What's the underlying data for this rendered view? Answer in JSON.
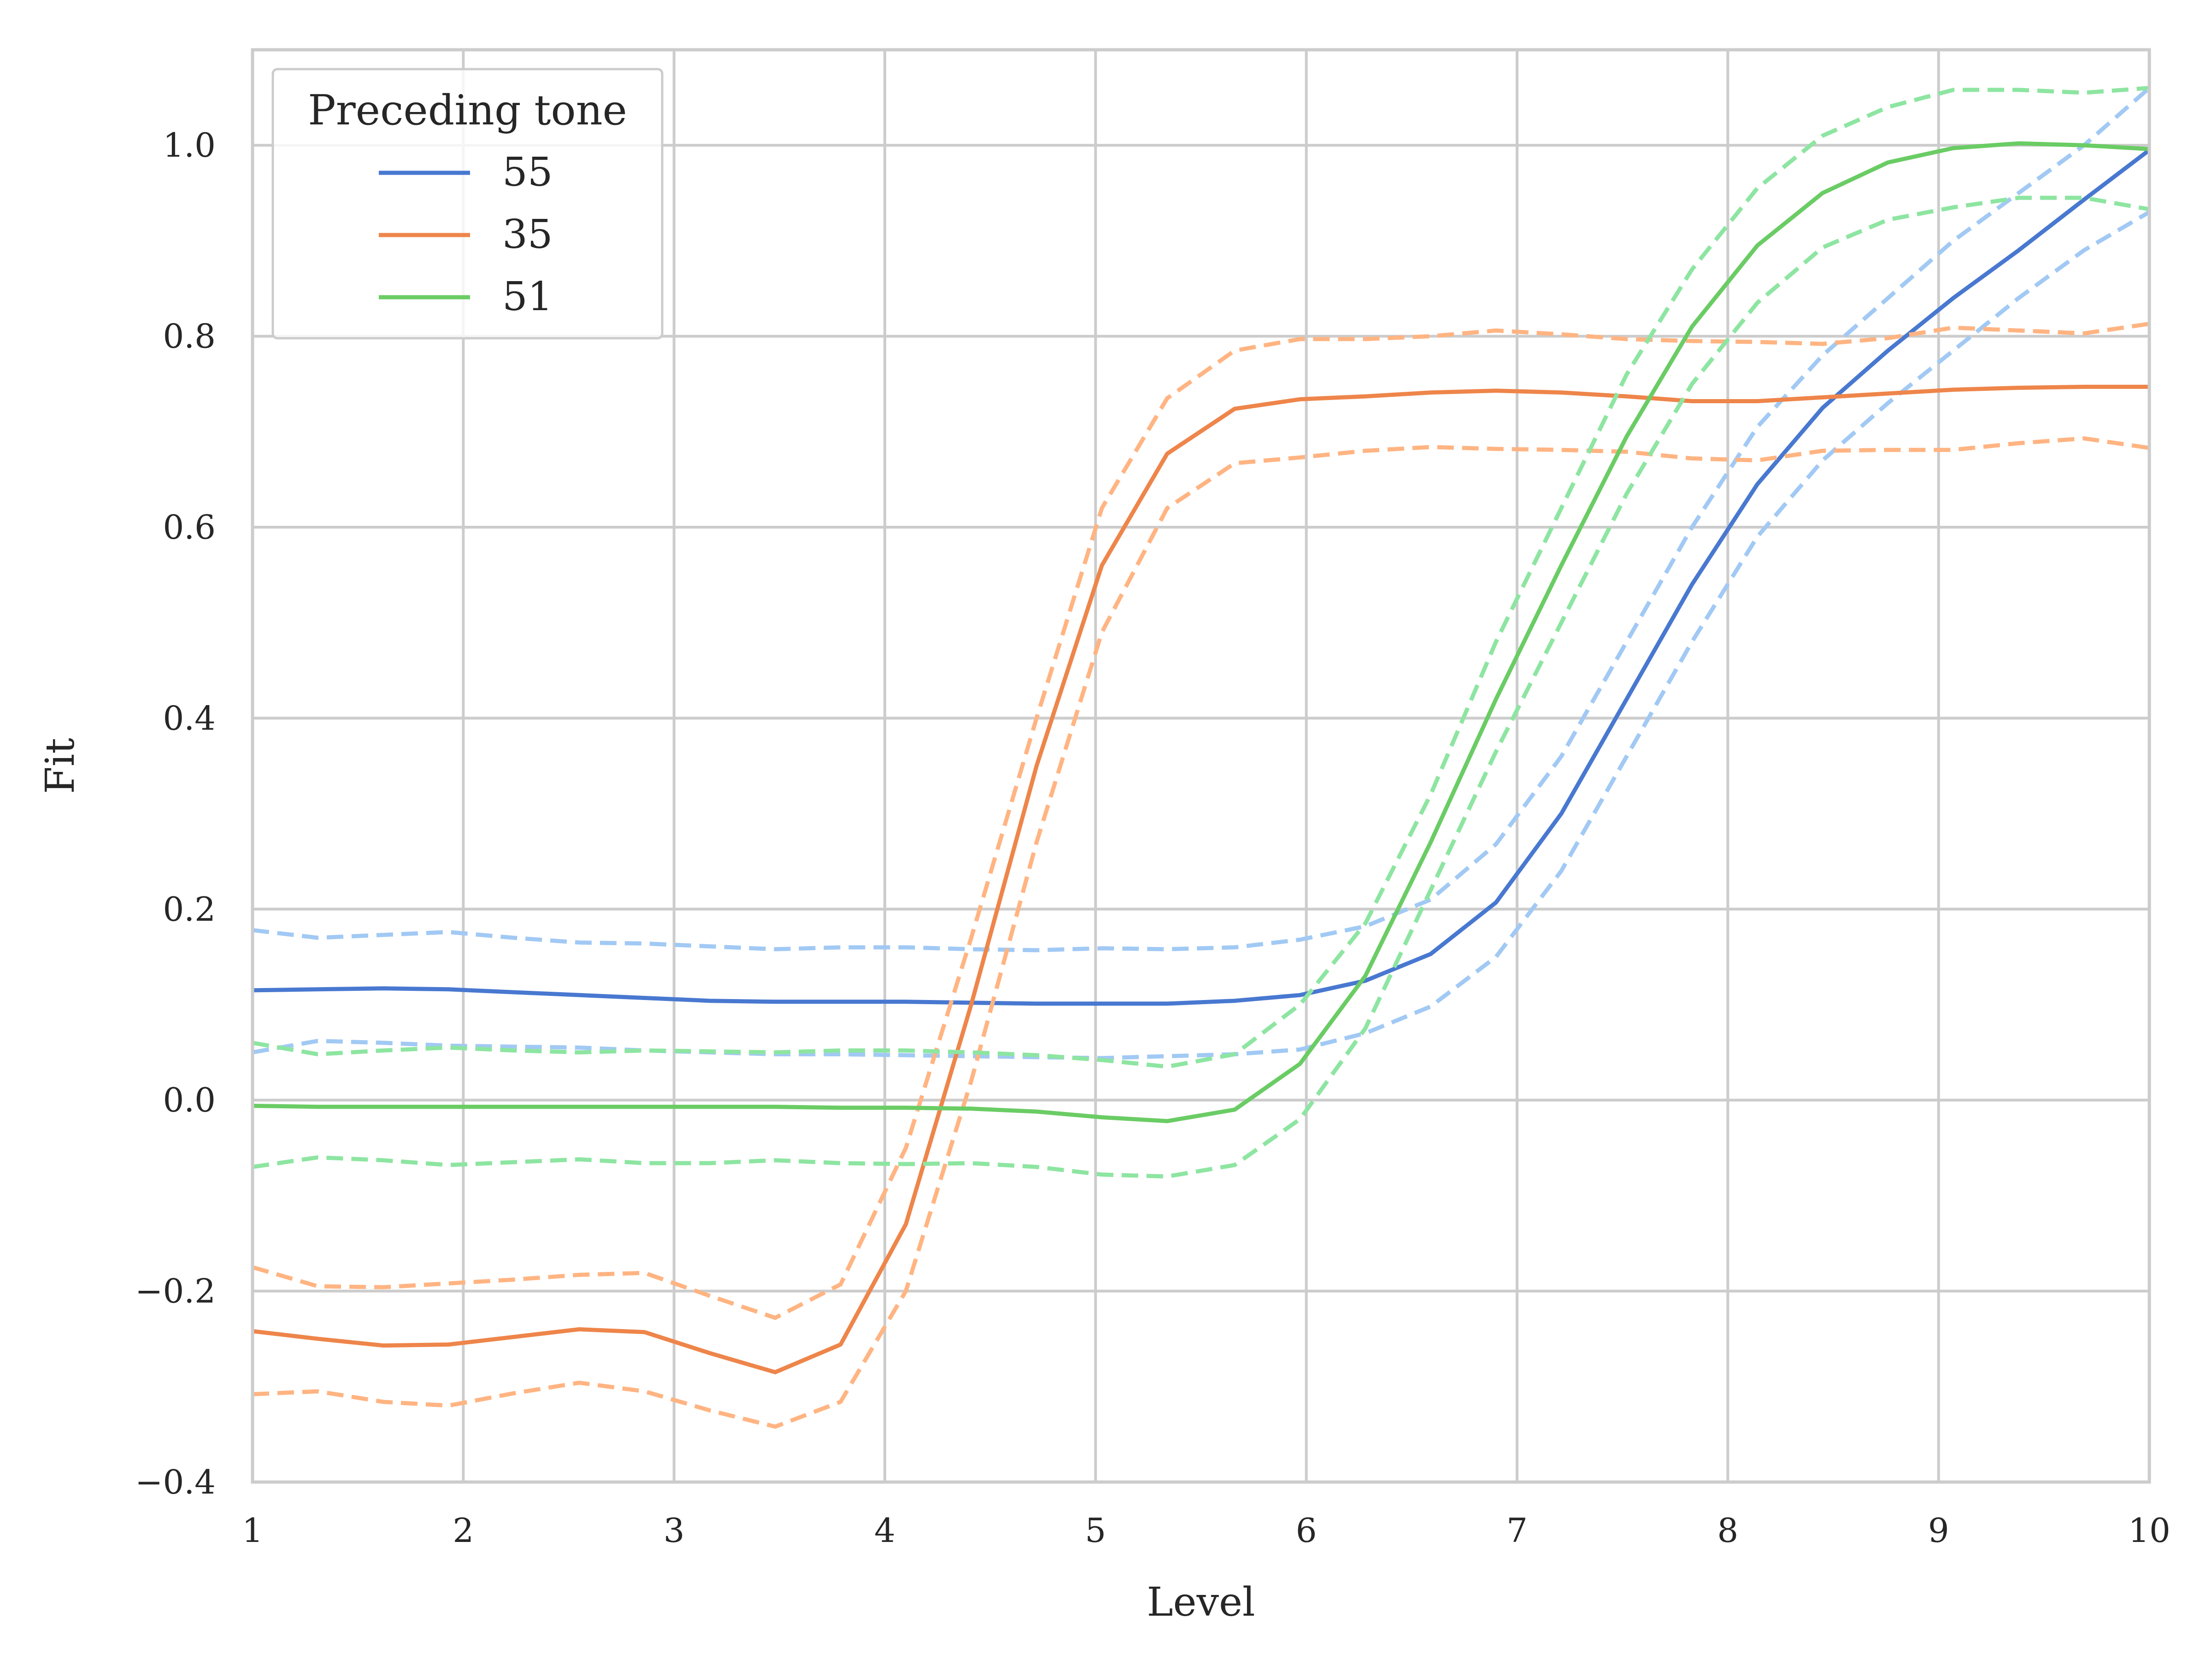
{
  "chart_data": {
    "type": "line",
    "title": "",
    "xlabel": "Level",
    "ylabel": "Fit",
    "xlim": [
      1,
      10
    ],
    "ylim": [
      -0.4,
      1.1
    ],
    "xticks": [
      1,
      2,
      3,
      4,
      5,
      6,
      7,
      8,
      9,
      10
    ],
    "yticks": [
      -0.4,
      -0.2,
      0.0,
      0.2,
      0.4,
      0.6,
      0.8,
      1.0
    ],
    "ytick_labels": [
      "−0.4",
      "−0.2",
      "0.0",
      "0.2",
      "0.4",
      "0.6",
      "0.8",
      "1.0"
    ],
    "grid": true,
    "legend": {
      "title": "Preceding tone",
      "placement": "top-left"
    },
    "x": [
      1.0,
      1.31,
      1.62,
      1.93,
      2.24,
      2.55,
      2.86,
      3.17,
      3.48,
      3.79,
      4.1,
      4.41,
      4.72,
      5.03,
      5.34,
      5.66,
      5.97,
      6.28,
      6.59,
      6.9,
      7.21,
      7.52,
      7.83,
      8.14,
      8.45,
      8.76,
      9.07,
      9.38,
      9.69,
      10.0
    ],
    "series": [
      {
        "name": "55",
        "color": "#4878d0",
        "ci_color": "#a1c9f4",
        "values": [
          0.115,
          0.116,
          0.117,
          0.116,
          0.113,
          0.11,
          0.107,
          0.104,
          0.103,
          0.103,
          0.103,
          0.102,
          0.101,
          0.101,
          0.101,
          0.104,
          0.11,
          0.125,
          0.153,
          0.207,
          0.3,
          0.42,
          0.54,
          0.645,
          0.725,
          0.785,
          0.84,
          0.89,
          0.943,
          0.995
        ],
        "upper": [
          0.178,
          0.17,
          0.173,
          0.176,
          0.17,
          0.165,
          0.164,
          0.161,
          0.158,
          0.16,
          0.16,
          0.158,
          0.157,
          0.159,
          0.158,
          0.16,
          0.168,
          0.182,
          0.21,
          0.268,
          0.36,
          0.48,
          0.6,
          0.705,
          0.78,
          0.84,
          0.9,
          0.95,
          1.0,
          1.06
        ],
        "lower": [
          0.05,
          0.062,
          0.06,
          0.057,
          0.056,
          0.055,
          0.052,
          0.05,
          0.048,
          0.048,
          0.047,
          0.046,
          0.045,
          0.044,
          0.046,
          0.048,
          0.053,
          0.07,
          0.098,
          0.15,
          0.24,
          0.36,
          0.48,
          0.59,
          0.67,
          0.73,
          0.785,
          0.84,
          0.89,
          0.93
        ]
      },
      {
        "name": "35",
        "color": "#ee854a",
        "ci_color": "#ffb482",
        "values": [
          -0.242,
          -0.25,
          -0.257,
          -0.256,
          -0.248,
          -0.24,
          -0.243,
          -0.265,
          -0.285,
          -0.256,
          -0.13,
          0.1,
          0.35,
          0.56,
          0.677,
          0.724,
          0.734,
          0.737,
          0.741,
          0.743,
          0.741,
          0.737,
          0.732,
          0.732,
          0.736,
          0.74,
          0.744,
          0.746,
          0.747,
          0.747
        ],
        "upper": [
          -0.175,
          -0.195,
          -0.196,
          -0.192,
          -0.188,
          -0.183,
          -0.181,
          -0.205,
          -0.228,
          -0.193,
          -0.05,
          0.17,
          0.4,
          0.62,
          0.735,
          0.785,
          0.797,
          0.797,
          0.8,
          0.806,
          0.802,
          0.797,
          0.795,
          0.794,
          0.792,
          0.798,
          0.809,
          0.806,
          0.803,
          0.813
        ],
        "lower": [
          -0.308,
          -0.305,
          -0.316,
          -0.32,
          -0.307,
          -0.296,
          -0.305,
          -0.325,
          -0.342,
          -0.316,
          -0.2,
          0.02,
          0.27,
          0.49,
          0.62,
          0.667,
          0.673,
          0.68,
          0.684,
          0.682,
          0.681,
          0.679,
          0.672,
          0.67,
          0.68,
          0.681,
          0.681,
          0.688,
          0.693,
          0.683
        ]
      },
      {
        "name": "51",
        "color": "#6acc64",
        "ci_color": "#8de5a1",
        "values": [
          -0.006,
          -0.007,
          -0.007,
          -0.007,
          -0.007,
          -0.007,
          -0.007,
          -0.007,
          -0.007,
          -0.008,
          -0.008,
          -0.009,
          -0.012,
          -0.018,
          -0.022,
          -0.01,
          0.038,
          0.13,
          0.27,
          0.42,
          0.56,
          0.695,
          0.81,
          0.895,
          0.95,
          0.982,
          0.997,
          1.002,
          1.0,
          0.996
        ],
        "upper": [
          0.06,
          0.048,
          0.052,
          0.055,
          0.052,
          0.05,
          0.052,
          0.051,
          0.05,
          0.052,
          0.052,
          0.05,
          0.047,
          0.042,
          0.035,
          0.048,
          0.1,
          0.185,
          0.32,
          0.48,
          0.62,
          0.76,
          0.87,
          0.955,
          1.01,
          1.04,
          1.058,
          1.058,
          1.055,
          1.06
        ],
        "lower": [
          -0.07,
          -0.06,
          -0.063,
          -0.068,
          -0.065,
          -0.062,
          -0.066,
          -0.066,
          -0.063,
          -0.066,
          -0.067,
          -0.066,
          -0.07,
          -0.078,
          -0.08,
          -0.068,
          -0.02,
          0.075,
          0.22,
          0.365,
          0.5,
          0.635,
          0.75,
          0.835,
          0.893,
          0.922,
          0.935,
          0.945,
          0.945,
          0.933
        ]
      }
    ]
  }
}
